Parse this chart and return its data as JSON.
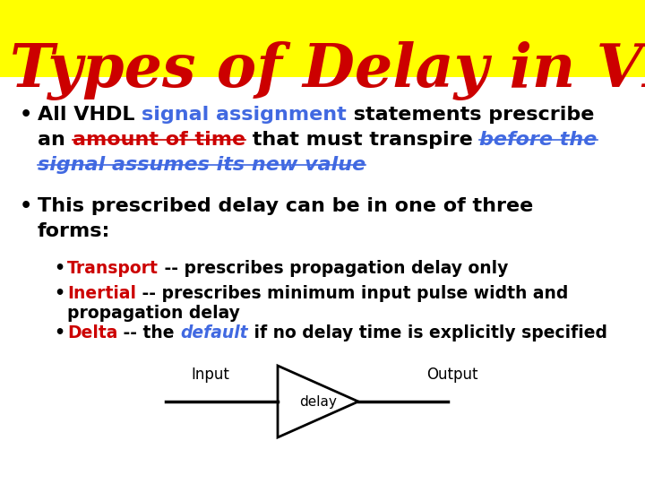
{
  "title": "Types of Delay in VHDL",
  "title_color": "#cc0000",
  "title_bg": "#ffff00",
  "title_fontsize": 48,
  "bg_color": "#ffffff",
  "main_fontsize": 16,
  "sub_fontsize": 13.5,
  "title_bar_height": 0.16,
  "diagram_input_label": "Input",
  "diagram_delay_label": "delay",
  "diagram_output_label": "Output"
}
